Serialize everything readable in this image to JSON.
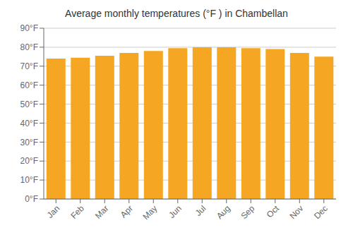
{
  "chart_data": {
    "type": "bar",
    "title": "Average monthly temperatures (°F ) in Chambellan",
    "categories": [
      "Jan",
      "Feb",
      "Mar",
      "Apr",
      "May",
      "Jun",
      "Jul",
      "Aug",
      "Sep",
      "Oct",
      "Nov",
      "Dec"
    ],
    "values": [
      74,
      74.5,
      75.5,
      77,
      78,
      79.5,
      80,
      80,
      79.5,
      79,
      77,
      75
    ],
    "color": "#F5A623",
    "ylim": [
      0,
      90
    ],
    "yticks": [
      {
        "value": 0,
        "label": "0°F"
      },
      {
        "value": 10,
        "label": "10°F"
      },
      {
        "value": 20,
        "label": "20°F"
      },
      {
        "value": 30,
        "label": "30°F"
      },
      {
        "value": 40,
        "label": "40°F"
      },
      {
        "value": 50,
        "label": "50°F"
      },
      {
        "value": 60,
        "label": "60°F"
      },
      {
        "value": 70,
        "label": "70°F"
      },
      {
        "value": 80,
        "label": "80°F"
      },
      {
        "value": 90,
        "label": "90°F"
      }
    ],
    "grid": true
  }
}
